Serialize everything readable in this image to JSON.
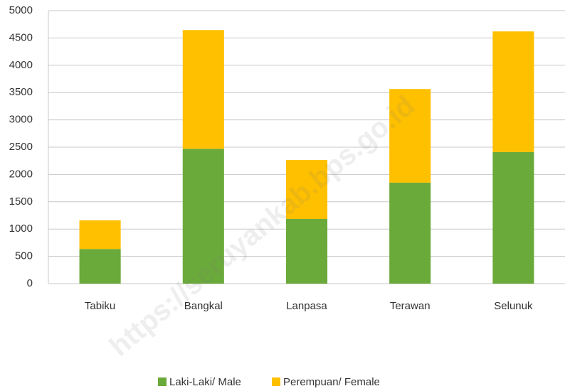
{
  "chart_data": {
    "type": "stacked_bar",
    "categories": [
      "Tabiku",
      "Bangkal",
      "Lanpasa",
      "Terawan",
      "Selunuk"
    ],
    "series": [
      {
        "name": "Laki-Laki/ Male",
        "color": "#6aaa3a",
        "values": [
          635,
          2470,
          1185,
          1850,
          2410
        ]
      },
      {
        "name": "Perempuan/ Female",
        "color": "#ffc000",
        "values": [
          525,
          2175,
          1080,
          1715,
          2210
        ]
      }
    ],
    "ylim": [
      0,
      5000
    ],
    "yticks": [
      0,
      500,
      1000,
      1500,
      2000,
      2500,
      3000,
      3500,
      4000,
      4500,
      5000
    ],
    "grid": true,
    "legend": "bottom",
    "watermark": "https://seruyankab.bps.go.id"
  }
}
